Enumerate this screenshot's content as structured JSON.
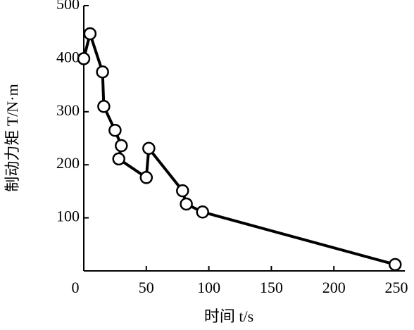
{
  "chart_data": {
    "type": "line",
    "x_label": "时间 t/s",
    "y_label": "制动力矩 T/N·m",
    "x": [
      0,
      5,
      15,
      16,
      25,
      30,
      28,
      50,
      52,
      79,
      82,
      95,
      249
    ],
    "values": [
      400,
      447,
      375,
      310,
      265,
      236,
      211,
      176,
      231,
      151,
      126,
      111,
      12
    ],
    "color": "#000000",
    "xlim": [
      0,
      250
    ],
    "xticks": [
      0,
      50,
      100,
      150,
      200,
      250
    ],
    "ylim": [
      0,
      500
    ],
    "yticks": [
      100,
      200,
      300,
      400,
      500
    ]
  }
}
